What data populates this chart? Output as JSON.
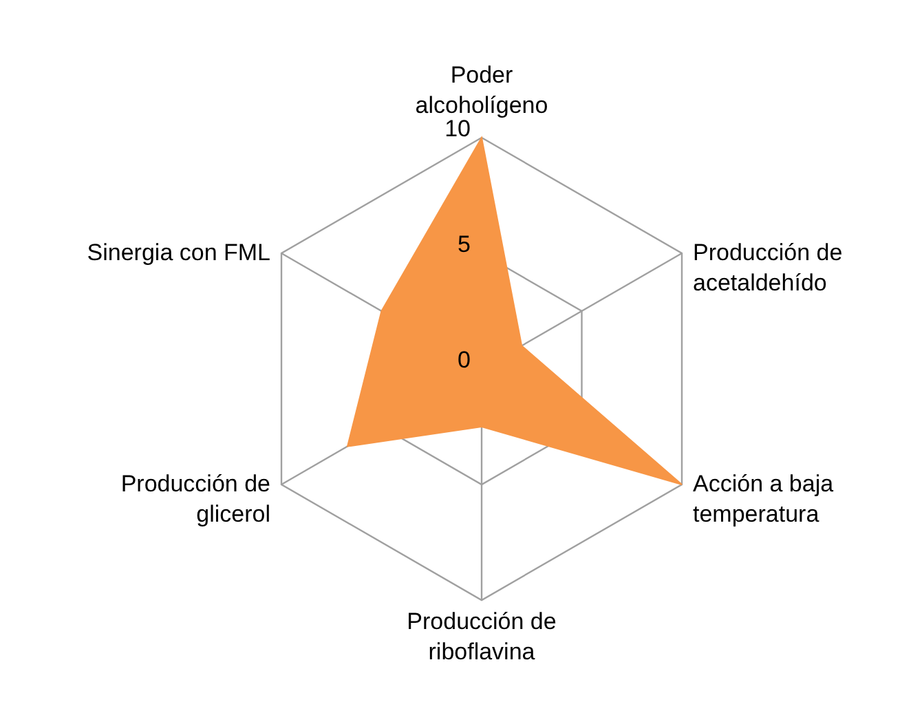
{
  "chart_data": {
    "type": "radar",
    "categories": [
      "Poder alcoholígeno",
      "Producción de acetaldehído",
      "Acción a baja temperatura",
      "Producción de riboflavina",
      "Producción de glicerol",
      "Sinergia con FML"
    ],
    "series": [
      {
        "color": "#f79646",
        "values": [
          10,
          2,
          10,
          2.5,
          6.7,
          5
        ]
      }
    ],
    "ylim": [
      0,
      10
    ],
    "yticks": [
      0,
      5,
      10
    ],
    "grid": true
  }
}
